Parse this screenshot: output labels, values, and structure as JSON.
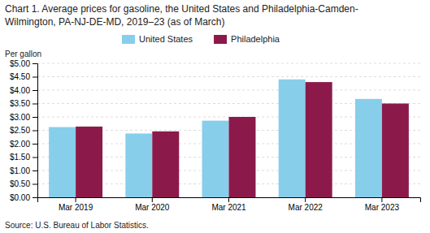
{
  "chart_data": {
    "type": "bar",
    "title": [
      "Chart 1. Average prices for gasoline, the United States and Philadelphia-Camden-",
      "Wilmington, PA-NJ-DE-MD,  2019–23 (as of March)"
    ],
    "ylabel": "Per gallon",
    "source": "Source: U.S. Bureau of Labor Statistics.",
    "categories": [
      "Mar 2019",
      "Mar 2020",
      "Mar 2021",
      "Mar 2022",
      "Mar 2023"
    ],
    "series": [
      {
        "name": "United States",
        "color": "#87CEEB",
        "values": [
          2.62,
          2.38,
          2.86,
          4.4,
          3.67
        ]
      },
      {
        "name": "Philadelphia",
        "color": "#8B1A4A",
        "values": [
          2.64,
          2.46,
          3.0,
          4.3,
          3.5
        ]
      }
    ],
    "ylim": [
      0,
      5.0
    ],
    "yticks": [
      {
        "value": 0.0,
        "label": "$0.00"
      },
      {
        "value": 0.5,
        "label": "$0.50"
      },
      {
        "value": 1.0,
        "label": "$1.00"
      },
      {
        "value": 1.5,
        "label": "$1.50"
      },
      {
        "value": 2.0,
        "label": "$2.00"
      },
      {
        "value": 2.5,
        "label": "$2.50"
      },
      {
        "value": 3.0,
        "label": "$3.00"
      },
      {
        "value": 3.5,
        "label": "$3.50"
      },
      {
        "value": 4.0,
        "label": "$4.00"
      },
      {
        "value": 4.5,
        "label": "$4.50"
      },
      {
        "value": 5.0,
        "label": "$5.00"
      }
    ],
    "grid": true,
    "legend": "top"
  }
}
